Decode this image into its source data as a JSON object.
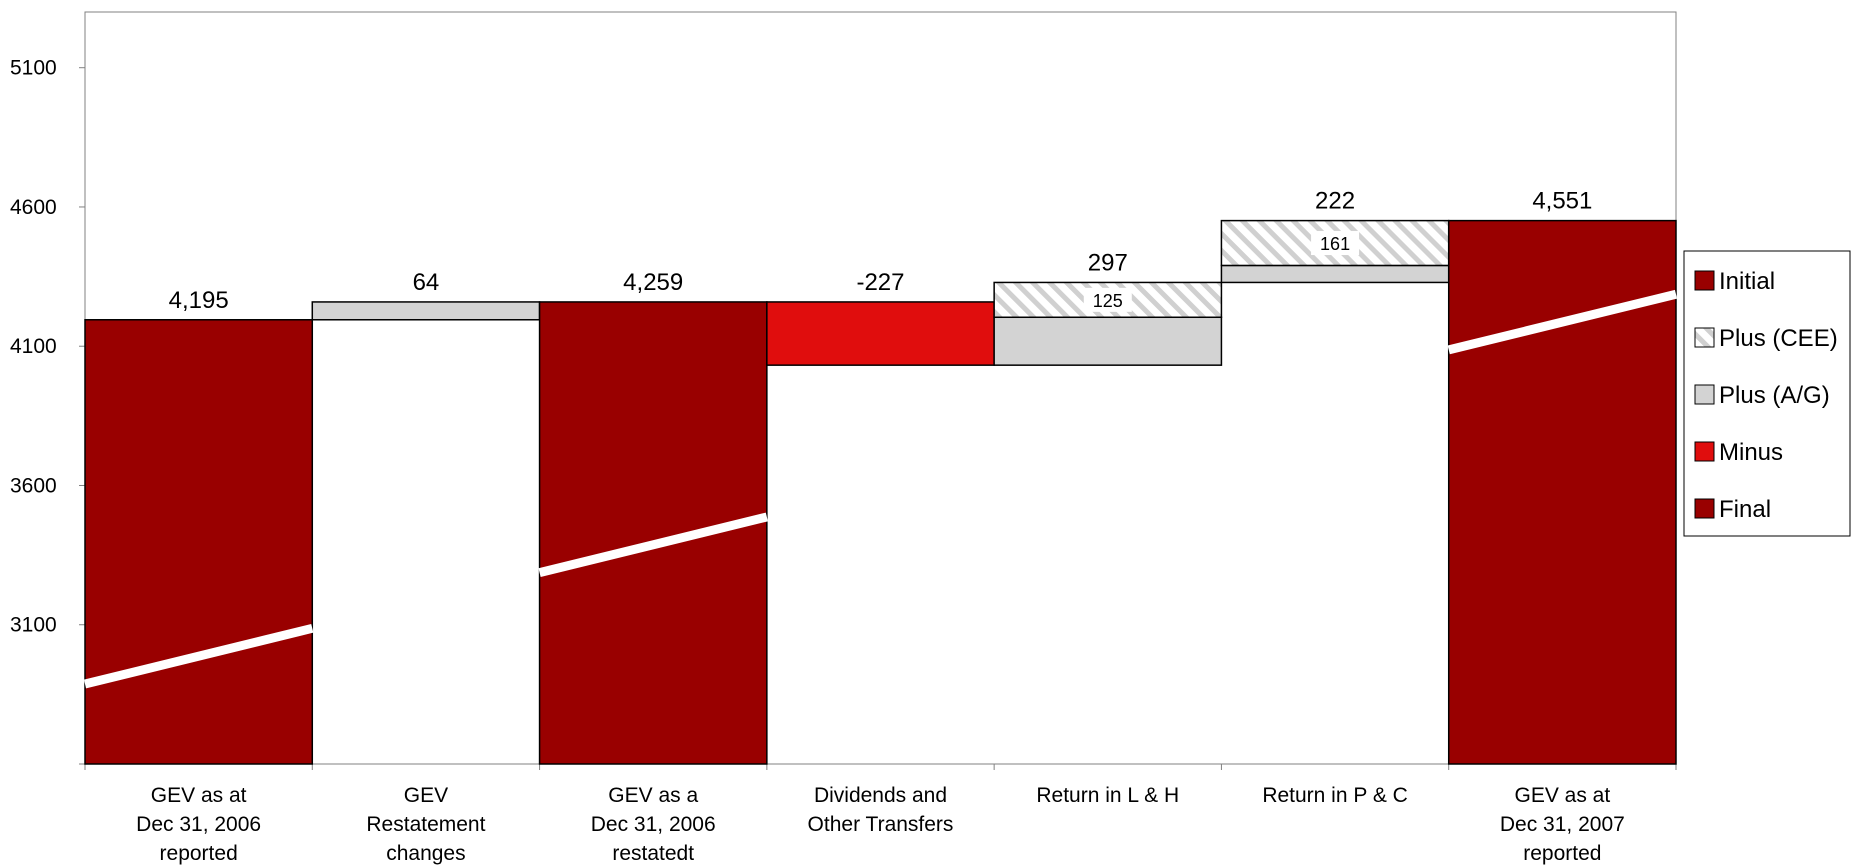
{
  "chart_data": {
    "type": "bar",
    "subtype": "waterfall",
    "title": "",
    "xlabel": "",
    "ylabel": "",
    "ylim": [
      2600,
      5300
    ],
    "yticks": [
      3100,
      3600,
      4100,
      4600,
      5100
    ],
    "axis_break": true,
    "grid": false,
    "legend_position": "right",
    "categories": [
      [
        "GEV as at",
        "Dec 31, 2006",
        "reported"
      ],
      [
        "GEV",
        "Restatement",
        "changes"
      ],
      [
        "GEV as a",
        "Dec 31, 2006",
        "restatedt"
      ],
      [
        "Dividends and",
        "Other Transfers"
      ],
      [
        "Return in L & H"
      ],
      [
        "Return in P & C"
      ],
      [
        "GEV as at",
        "Dec 31, 2007",
        "reported"
      ]
    ],
    "bars": [
      {
        "segments": [
          {
            "series": "Initial",
            "from": 2600,
            "to": 4195
          }
        ],
        "label": "4,195"
      },
      {
        "segments": [
          {
            "series": "Plus (A/G)",
            "from": 4195,
            "to": 4259
          }
        ],
        "label": "64"
      },
      {
        "segments": [
          {
            "series": "Final",
            "from": 2600,
            "to": 4259
          }
        ],
        "label": "4,259"
      },
      {
        "segments": [
          {
            "series": "Minus",
            "from": 4032,
            "to": 4259
          }
        ],
        "label": "-227"
      },
      {
        "segments": [
          {
            "series": "Plus (A/G)",
            "from": 4032,
            "to": 4204
          },
          {
            "series": "Plus (CEE)",
            "from": 4204,
            "to": 4329,
            "sublabel": "125"
          }
        ],
        "label": "297"
      },
      {
        "segments": [
          {
            "series": "Plus (A/G)",
            "from": 4329,
            "to": 4390
          },
          {
            "series": "Plus (CEE)",
            "from": 4390,
            "to": 4551,
            "sublabel": "161"
          }
        ],
        "label": "222"
      },
      {
        "segments": [
          {
            "series": "Final",
            "from": 2600,
            "to": 4551
          }
        ],
        "label": "4,551"
      }
    ],
    "series": [
      {
        "name": "Initial",
        "color": "#990000",
        "pattern": "solid"
      },
      {
        "name": "Plus (CEE)",
        "color": "#d3d3d3",
        "pattern": "hatched"
      },
      {
        "name": "Plus (A/G)",
        "color": "#d3d3d3",
        "pattern": "solid"
      },
      {
        "name": "Minus",
        "color": "#e00d0d",
        "pattern": "solid"
      },
      {
        "name": "Final",
        "color": "#990000",
        "pattern": "solid"
      }
    ],
    "colors": {
      "dark_red": "#990000",
      "bright_red": "#e00d0d",
      "light_grey": "#d3d3d3"
    }
  }
}
